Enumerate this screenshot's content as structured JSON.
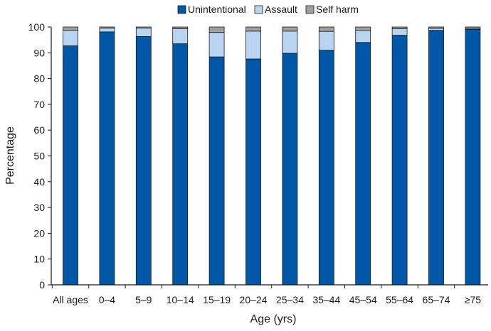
{
  "chart_data": {
    "type": "bar",
    "stacked": true,
    "categories": [
      "All ages",
      "0–4",
      "5–9",
      "10–14",
      "15–19",
      "20–24",
      "25–34",
      "35–44",
      "45–54",
      "55–64",
      "65–74",
      "≥75"
    ],
    "series": [
      {
        "name": "Unintentional",
        "color": "#0057a8",
        "values": [
          92.7,
          98.1,
          96.3,
          93.5,
          88.4,
          87.6,
          89.8,
          91.0,
          94.0,
          96.8,
          98.7,
          99.1
        ]
      },
      {
        "name": "Assault",
        "color": "#b8d4f0",
        "values": [
          6.1,
          1.5,
          3.3,
          5.8,
          9.5,
          10.8,
          8.6,
          7.3,
          4.6,
          2.5,
          0.8,
          0.4
        ]
      },
      {
        "name": "Self harm",
        "color": "#a0a0a0",
        "values": [
          1.2,
          0.4,
          0.4,
          0.7,
          2.1,
          1.6,
          1.6,
          1.7,
          1.4,
          0.7,
          0.5,
          0.5
        ]
      }
    ],
    "xlabel": "Age (yrs)",
    "ylabel": "Percentage",
    "ylim": [
      0,
      100
    ],
    "yticks": [
      0,
      10,
      20,
      30,
      40,
      50,
      60,
      70,
      80,
      90,
      100
    ],
    "legend_position": "top-center",
    "grid": false
  }
}
